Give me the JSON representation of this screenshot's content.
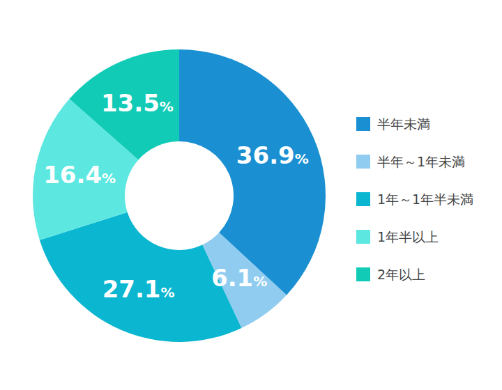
{
  "chart_data": {
    "type": "pie",
    "categories": [
      "半年未満",
      "半年～1年未満",
      "1年～1年半未満",
      "1年半以上",
      "2年以上"
    ],
    "values": [
      36.9,
      6.1,
      27.1,
      16.4,
      13.5
    ],
    "value_labels": [
      "36.9%",
      "6.1%",
      "27.1%",
      "16.4%",
      "13.5%"
    ],
    "colors": [
      "#1a90d2",
      "#90ccf0",
      "#0ab6d0",
      "#5ce7e0",
      "#12cbb6"
    ],
    "data_labels": true,
    "legend": "right"
  }
}
